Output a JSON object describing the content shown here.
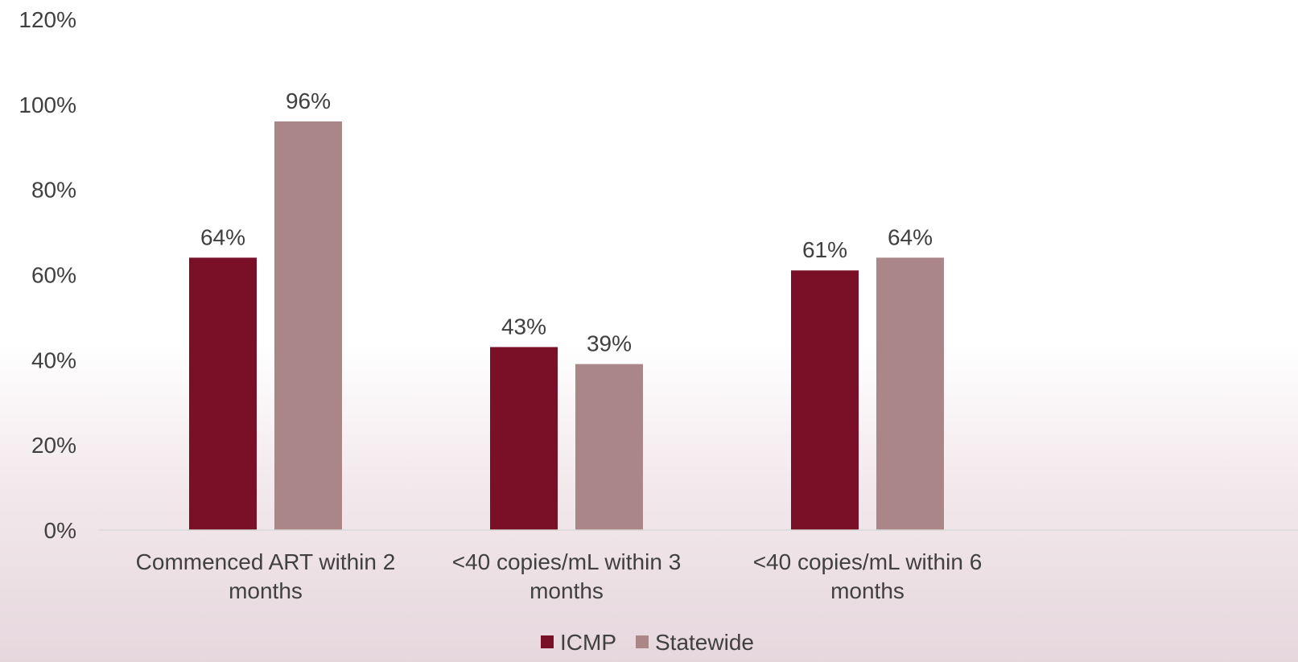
{
  "chart_data": {
    "type": "bar",
    "categories": [
      [
        "Commenced ART within 2",
        "months"
      ],
      [
        "<40 copies/mL within 3",
        "months"
      ],
      [
        "<40 copies/mL within 6",
        "months"
      ]
    ],
    "series": [
      {
        "name": "ICMP",
        "values": [
          64,
          43,
          61
        ],
        "labels": [
          "64%",
          "43%",
          "61%"
        ],
        "color": "#7a0f28"
      },
      {
        "name": "Statewide",
        "values": [
          96,
          39,
          64
        ],
        "labels": [
          "96%",
          "39%",
          "64%"
        ],
        "color": "#ab8689"
      }
    ],
    "ylim": [
      0,
      120
    ],
    "yticks": [
      0,
      20,
      40,
      60,
      80,
      100,
      120
    ],
    "ytick_labels": [
      "0%",
      "20%",
      "40%",
      "60%",
      "80%",
      "100%",
      "120%"
    ],
    "grid": false,
    "legend_position": "bottom-center",
    "title": "",
    "xlabel": "",
    "ylabel": ""
  }
}
